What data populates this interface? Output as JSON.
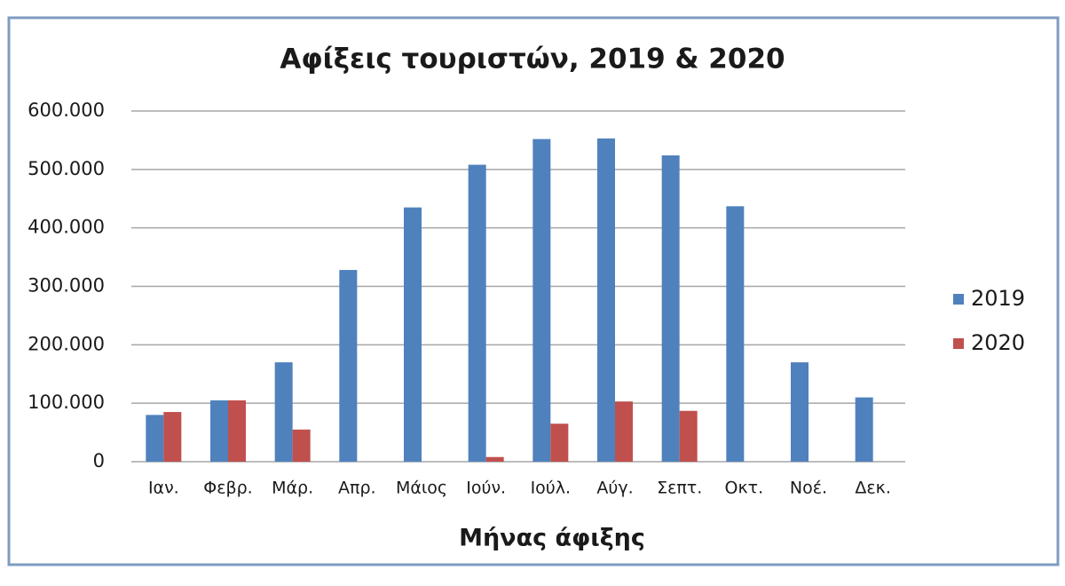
{
  "chart_data": {
    "type": "bar",
    "title": "Αφίξεις τουριστών, 2019 & 2020",
    "x_label": "Μήνας άφιξης",
    "categories": [
      "Ιαν.",
      "Φεβρ.",
      "Μάρ.",
      "Απρ.",
      "Μάιος",
      "Ιούν.",
      "Ιούλ.",
      "Αύγ.",
      "Σεπτ.",
      "Οκτ.",
      "Νοέ.",
      "Δεκ."
    ],
    "series": [
      {
        "name": "2019",
        "color": "#4f81bd",
        "values": [
          80000,
          105000,
          170000,
          328000,
          435000,
          508000,
          552000,
          553000,
          524000,
          437000,
          170000,
          110000
        ]
      },
      {
        "name": "2020",
        "color": "#c0504d",
        "values": [
          85000,
          105000,
          55000,
          0,
          0,
          8000,
          65000,
          103000,
          87000,
          null,
          null,
          null
        ]
      }
    ],
    "ylim": [
      0,
      600000
    ],
    "yticks": [
      0,
      {
        "value": 100000,
        "label": "100.000"
      },
      {
        "value": 200000,
        "label": "200.000"
      },
      {
        "value": 300000,
        "label": "300.000"
      },
      {
        "value": 400000,
        "label": "400.000"
      },
      {
        "value": 500000,
        "label": "500.000"
      },
      {
        "value": 600000,
        "label": "600.000"
      }
    ],
    "grid": true,
    "legend": "right"
  }
}
